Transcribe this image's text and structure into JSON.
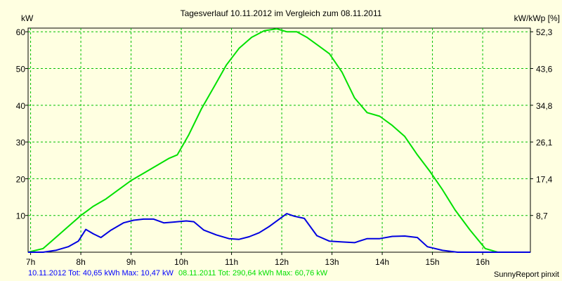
{
  "chart_data": {
    "type": "line",
    "title": "Tagesverlauf 10.11.2012 im Vergleich zum 08.11.2011",
    "ylabel_left": "kW",
    "ylabel_right": "kW/kWp [%]",
    "x_unit": "hour",
    "xlim": [
      6.95,
      16.95
    ],
    "ylim_left": [
      0,
      61
    ],
    "yticks_left": [
      10,
      20,
      30,
      40,
      50,
      60
    ],
    "yticks_right": [
      "8,7",
      "17,4",
      "26,1",
      "34,8",
      "43,6",
      "52,3"
    ],
    "x_ticks": [
      {
        "value": 7,
        "label": "7h"
      },
      {
        "value": 8,
        "label": "8h"
      },
      {
        "value": 9,
        "label": "9h"
      },
      {
        "value": 10,
        "label": "10h"
      },
      {
        "value": 11,
        "label": "11h"
      },
      {
        "value": 12,
        "label": "12h"
      },
      {
        "value": 13,
        "label": "13h"
      },
      {
        "value": 14,
        "label": "14h"
      },
      {
        "value": 15,
        "label": "15h"
      },
      {
        "value": 16,
        "label": "16h"
      }
    ],
    "grid": true,
    "series": [
      {
        "name": "08.11.2011",
        "color": "#00e000",
        "x": [
          6.95,
          7.25,
          7.5,
          7.75,
          8.0,
          8.25,
          8.5,
          8.75,
          9.0,
          9.25,
          9.5,
          9.75,
          9.92,
          10.15,
          10.4,
          10.65,
          10.9,
          11.15,
          11.4,
          11.65,
          11.9,
          12.1,
          12.3,
          12.5,
          12.75,
          12.95,
          13.2,
          13.45,
          13.7,
          13.95,
          14.2,
          14.45,
          14.7,
          14.95,
          15.2,
          15.45,
          15.75,
          16.05,
          16.3,
          16.5,
          16.95
        ],
        "y": [
          0,
          1,
          4,
          7,
          10,
          12.5,
          14.5,
          17,
          19.5,
          21.5,
          23.5,
          25.5,
          26.5,
          32,
          39,
          45,
          51,
          55.5,
          58.5,
          60.3,
          60.8,
          60,
          60,
          58.5,
          56,
          54,
          49,
          42,
          38,
          37,
          34.5,
          31.5,
          26.5,
          22,
          17,
          11.5,
          6,
          1,
          0,
          0,
          0
        ]
      },
      {
        "name": "10.11.2012",
        "color": "#0000e0",
        "x": [
          6.95,
          7.25,
          7.5,
          7.75,
          7.95,
          8.1,
          8.25,
          8.4,
          8.6,
          8.85,
          9.05,
          9.25,
          9.45,
          9.65,
          9.85,
          10.1,
          10.25,
          10.45,
          10.7,
          10.95,
          11.15,
          11.35,
          11.55,
          11.75,
          11.95,
          12.1,
          12.25,
          12.45,
          12.7,
          12.95,
          13.2,
          13.45,
          13.7,
          13.95,
          14.2,
          14.45,
          14.7,
          14.9,
          15.2,
          15.5,
          16.05,
          16.95
        ],
        "y": [
          0,
          0,
          0.5,
          1.5,
          3,
          6.2,
          5,
          4,
          6,
          8,
          8.7,
          9,
          9,
          8,
          8.2,
          8.5,
          8.3,
          6,
          4.7,
          3.7,
          3.5,
          4.2,
          5.3,
          7,
          9,
          10.5,
          9.8,
          9.2,
          4.5,
          3,
          2.8,
          2.6,
          3.7,
          3.7,
          4.3,
          4.4,
          4,
          1.5,
          0.5,
          0,
          0,
          0
        ]
      }
    ]
  },
  "footer": {
    "series_2012": "10.11.2012 Tot: 40,65 kWh Max: 10,47 kW",
    "series_2011": "08.11.2011 Tot: 290,64 kWh Max: 60,76 kW",
    "credit": "SunnyReport pinxit",
    "color_2012": "#0000ff",
    "color_2011": "#00e000"
  }
}
